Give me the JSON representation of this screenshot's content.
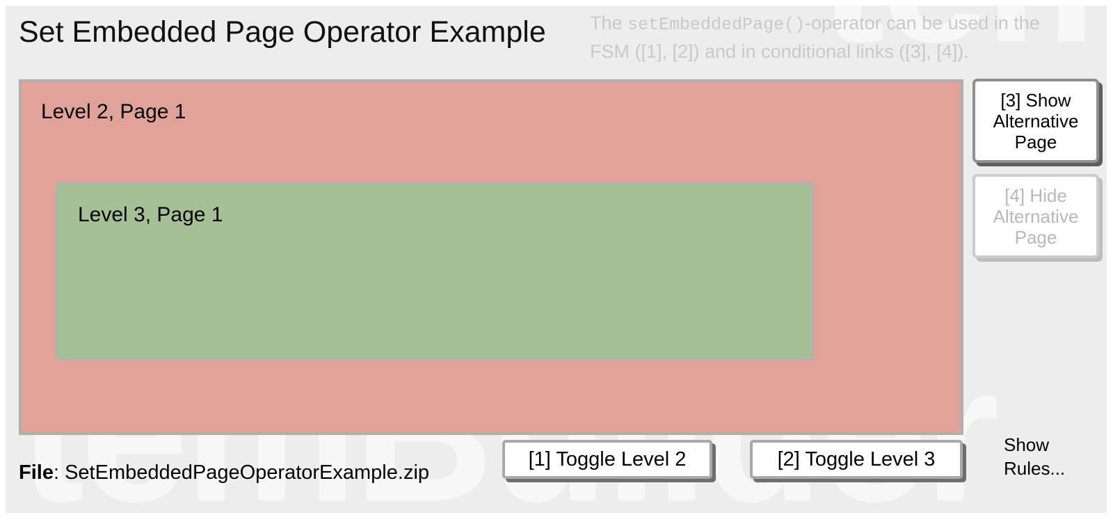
{
  "title": "Set Embedded Page Operator Example",
  "description": {
    "part1": "The ",
    "code": "setEmbeddedPage()",
    "part2": "-operator  can be used in the FSM ([1], [2]) and in conditional links ([3], [4])."
  },
  "pages": {
    "level2": {
      "label": "Level 2, Page 1",
      "fill": "#e1a399",
      "border": "#b0b0b0"
    },
    "level3": {
      "label": "Level 3, Page 1",
      "fill": "#a6c095",
      "border": "#b1b4ae"
    }
  },
  "buttons": {
    "show_alt": "[3] Show Alternative Page",
    "hide_alt": "[4] Hide Alternative Page",
    "toggle_l2": "[1] Toggle Level 2",
    "toggle_l3": "[2] Toggle Level 3"
  },
  "links": {
    "show_rules": "Show Rules..."
  },
  "file": {
    "label": "File",
    "rest": ": SetEmbeddedPageOperatorExample.zip"
  },
  "watermark": "temBuilder",
  "colors": {
    "panel_bg": "#ededed",
    "description_text": "#c9c9c9",
    "level2_fill": "#e1a399",
    "level3_fill": "#a6c095",
    "box_border": "#b0b0b0"
  }
}
